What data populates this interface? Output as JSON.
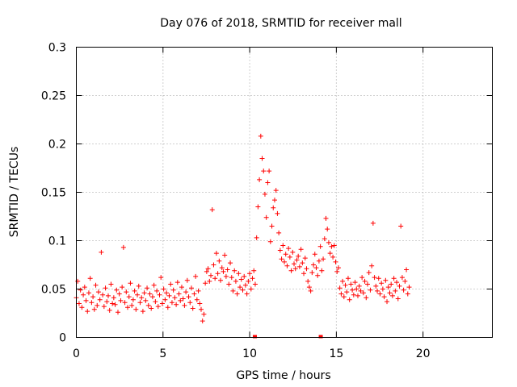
{
  "chart_data": {
    "type": "scatter",
    "title": "Day 076 of 2018, SRMTID for receiver mall",
    "xlabel": "GPS time / hours",
    "ylabel": "SRMTID / TECUs",
    "xlim": [
      0,
      24
    ],
    "ylim": [
      0,
      0.3
    ],
    "x_ticks": [
      0,
      5,
      10,
      15,
      20
    ],
    "x_tick_labels": [
      "0",
      "5",
      "10",
      "15",
      "20"
    ],
    "y_ticks": [
      0,
      0.05,
      0.1,
      0.15,
      0.2,
      0.25,
      0.3
    ],
    "y_tick_labels": [
      "0",
      "0.05",
      "0.1",
      "0.15",
      "0.2",
      "0.25",
      "0.3"
    ],
    "grid": true,
    "marker": "+",
    "color": "#ff0000",
    "x_sample_step_hours": 0.08,
    "x_start_hours": 0.0,
    "series": [
      {
        "name": "receiver mall",
        "values": [
          0.041,
          0.058,
          0.035,
          0.049,
          0.031,
          0.044,
          0.052,
          0.038,
          0.027,
          0.046,
          0.061,
          0.036,
          0.042,
          0.029,
          0.054,
          0.033,
          0.047,
          0.039,
          0.088,
          0.044,
          0.032,
          0.051,
          0.037,
          0.043,
          0.028,
          0.055,
          0.035,
          0.041,
          0.034,
          0.049,
          0.026,
          0.045,
          0.038,
          0.052,
          0.093,
          0.036,
          0.047,
          0.031,
          0.042,
          0.056,
          0.033,
          0.039,
          0.048,
          0.029,
          0.044,
          0.053,
          0.036,
          0.041,
          0.027,
          0.046,
          0.038,
          0.051,
          0.033,
          0.045,
          0.03,
          0.042,
          0.054,
          0.037,
          0.048,
          0.032,
          0.044,
          0.062,
          0.035,
          0.05,
          0.039,
          0.046,
          0.031,
          0.043,
          0.055,
          0.036,
          0.049,
          0.041,
          0.034,
          0.057,
          0.045,
          0.038,
          0.052,
          0.04,
          0.033,
          0.047,
          0.059,
          0.042,
          0.036,
          0.051,
          0.03,
          0.045,
          0.063,
          0.039,
          0.048,
          0.035,
          0.029,
          0.017,
          0.024,
          0.056,
          0.068,
          0.071,
          0.058,
          0.064,
          0.132,
          0.075,
          0.061,
          0.087,
          0.066,
          0.079,
          0.059,
          0.072,
          0.068,
          0.085,
          0.063,
          0.07,
          0.055,
          0.077,
          0.062,
          0.048,
          0.069,
          0.058,
          0.045,
          0.066,
          0.052,
          0.06,
          0.049,
          0.063,
          0.054,
          0.045,
          0.058,
          0.066,
          0.05,
          0.061,
          0.069,
          0.055,
          0.103,
          0.135,
          0.163,
          0.208,
          0.185,
          0.172,
          0.148,
          0.124,
          0.16,
          0.172,
          0.099,
          0.115,
          0.134,
          0.142,
          0.152,
          0.128,
          0.108,
          0.09,
          0.081,
          0.095,
          0.078,
          0.086,
          0.074,
          0.092,
          0.083,
          0.069,
          0.088,
          0.076,
          0.071,
          0.08,
          0.084,
          0.073,
          0.091,
          0.077,
          0.066,
          0.082,
          0.071,
          0.058,
          0.052,
          0.048,
          0.067,
          0.075,
          0.086,
          0.072,
          0.064,
          0.079,
          0.094,
          0.069,
          0.081,
          0.102,
          0.123,
          0.112,
          0.098,
          0.087,
          0.094,
          0.083,
          0.095,
          0.078,
          0.068,
          0.072,
          0.051,
          0.045,
          0.058,
          0.042,
          0.054,
          0.047,
          0.061,
          0.039,
          0.055,
          0.049,
          0.044,
          0.057,
          0.05,
          0.043,
          0.053,
          0.048,
          0.062,
          0.046,
          0.058,
          0.041,
          0.055,
          0.067,
          0.049,
          0.074,
          0.118,
          0.062,
          0.053,
          0.048,
          0.061,
          0.045,
          0.056,
          0.05,
          0.042,
          0.059,
          0.037,
          0.052,
          0.046,
          0.055,
          0.043,
          0.061,
          0.048,
          0.057,
          0.04,
          0.053,
          0.115,
          0.062,
          0.049,
          0.058,
          0.07,
          0.045,
          0.052
        ]
      }
    ],
    "bottom_markers_hours": [
      10.3,
      14.1
    ]
  }
}
